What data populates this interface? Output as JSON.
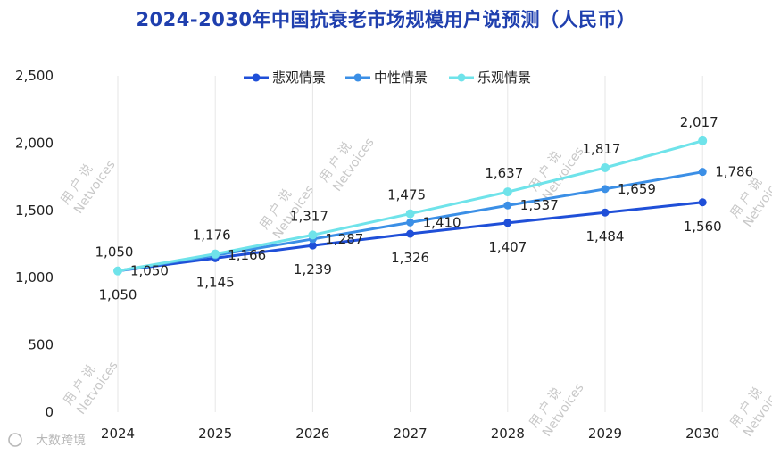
{
  "chart_data": {
    "type": "line",
    "title": "2024-2030年中国抗衰老市场规模用户说预测（人民币）",
    "categories": [
      "2024",
      "2025",
      "2026",
      "2027",
      "2028",
      "2029",
      "2030"
    ],
    "y_ticks": [
      "0",
      "500",
      "1,000",
      "1,500",
      "2,000",
      "2,500"
    ],
    "ylim": [
      0,
      2500
    ],
    "grid": "vertical",
    "legend_position": "top-center",
    "series": [
      {
        "name": "悲观情景",
        "color": "#1f4fd8",
        "values": [
          1050,
          1145,
          1239,
          1326,
          1407,
          1484,
          1560
        ],
        "labels": [
          "1,050",
          "1,145",
          "1,239",
          "1,326",
          "1,407",
          "1,484",
          "1,560"
        ]
      },
      {
        "name": "中性情景",
        "color": "#3b8fe6",
        "values": [
          1050,
          1166,
          1287,
          1410,
          1537,
          1659,
          1786
        ],
        "labels": [
          "1,050",
          "1,166",
          "1,287",
          "1,410",
          "1,537",
          "1,659",
          "1,786"
        ]
      },
      {
        "name": "乐观情景",
        "color": "#6fe3ea",
        "values": [
          1050,
          1176,
          1317,
          1475,
          1637,
          1817,
          2017
        ],
        "labels": [
          "1,050",
          "1,176",
          "1,317",
          "1,475",
          "1,637",
          "1,817",
          "2,017"
        ]
      }
    ]
  },
  "watermark": {
    "line1": "用 户 说",
    "line2": "Netvoices"
  },
  "corner_logo": "大数跨境"
}
